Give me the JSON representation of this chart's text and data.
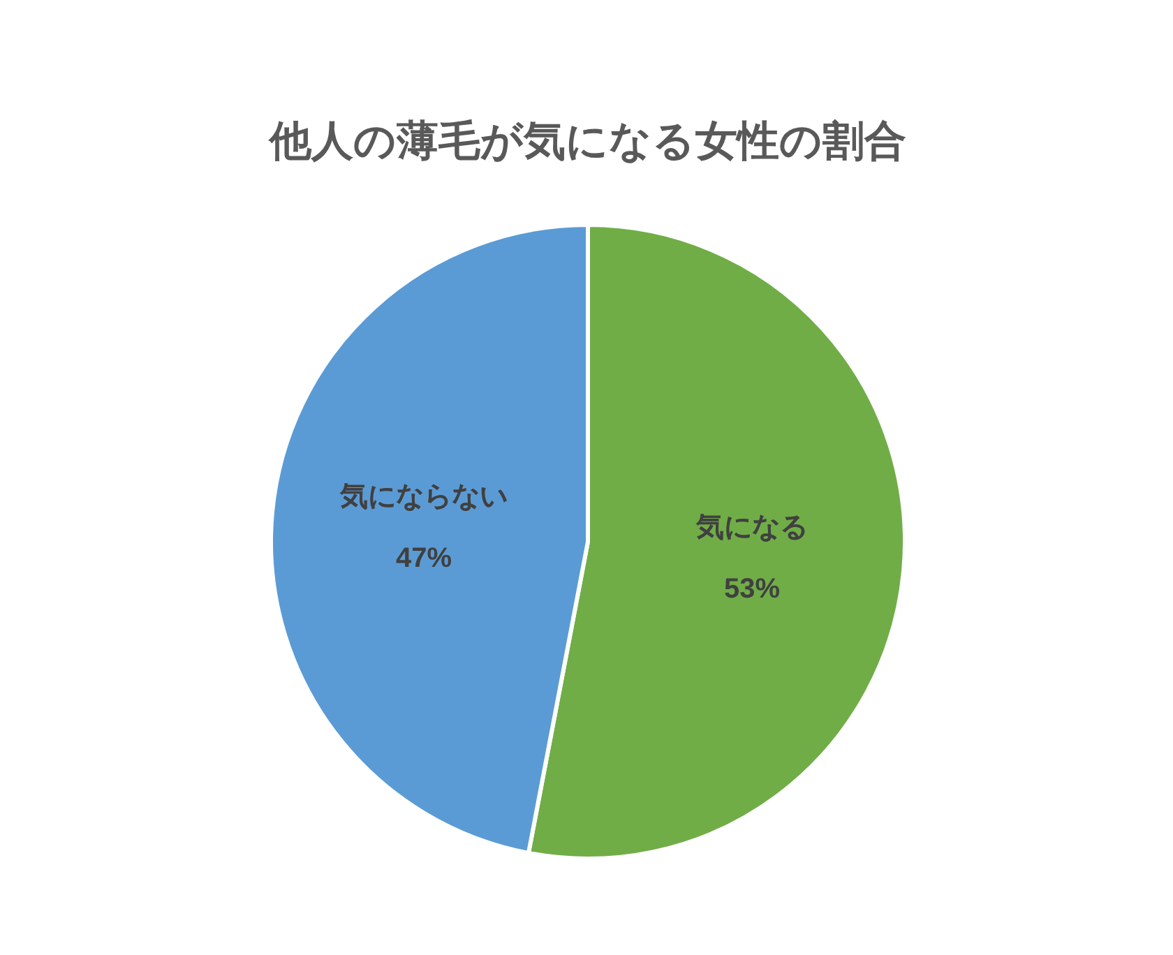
{
  "chart_data": {
    "type": "pie",
    "title": "他人の薄毛が気になる女性の割合",
    "categories": [
      "気になる",
      "気にならない"
    ],
    "values": [
      53,
      47
    ],
    "colors": [
      "#70ad47",
      "#5b9bd5"
    ],
    "value_labels": [
      "53%",
      "47%"
    ]
  }
}
